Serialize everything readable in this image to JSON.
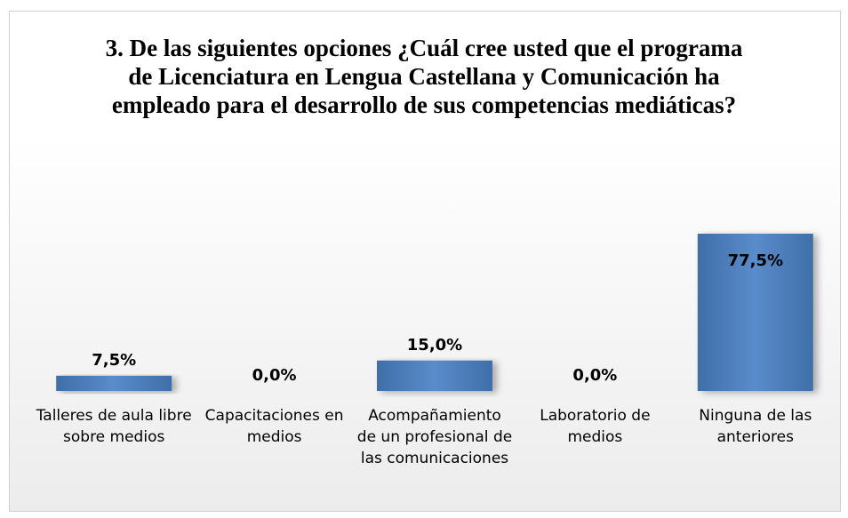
{
  "chart_data": {
    "type": "bar",
    "title": "3. De las siguientes opciones ¿Cuál cree usted que el programa de Licenciatura en Lengua Castellana y Comunicación ha empleado para el desarrollo de sus competencias mediáticas?",
    "categories": [
      "Talleres de aula libre sobre medios",
      "Capacitaciones en medios",
      "Acompañamiento de un profesional de las comunicaciones",
      "Laboratorio de medios",
      "Ninguna de las anteriores"
    ],
    "values": [
      7.5,
      0,
      15,
      0,
      77.5
    ],
    "value_labels": [
      "7,5%",
      "0,0%",
      "15,0%",
      "0,0%",
      "77,5%"
    ],
    "color": "#4f81bd"
  }
}
